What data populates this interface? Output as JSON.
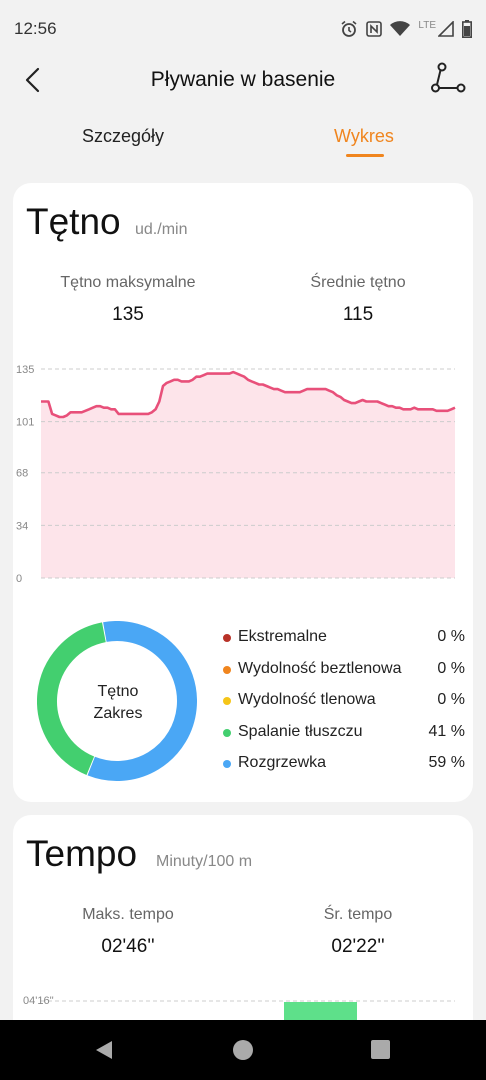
{
  "status_bar": {
    "time": "12:56",
    "network": "LTE"
  },
  "header": {
    "title": "Pływanie w basenie"
  },
  "tabs": [
    {
      "label": "Szczegóły",
      "active": false
    },
    {
      "label": "Wykres",
      "active": true
    }
  ],
  "heart_rate": {
    "title": "Tętno",
    "unit": "ud./min",
    "max_label": "Tętno maksymalne",
    "max_value": "135",
    "avg_label": "Średnie tętno",
    "avg_value": "115",
    "chart_data": {
      "type": "area",
      "yticks": [
        "135",
        "101",
        "68",
        "34",
        "0"
      ],
      "ylim": [
        0,
        135
      ],
      "line_color": "#e8507a",
      "fill_color": "#fde4ea",
      "values": [
        114,
        114,
        114,
        106,
        105,
        104,
        104,
        105,
        107,
        107,
        107,
        107,
        108,
        109,
        110,
        111,
        111,
        110,
        110,
        109,
        109,
        106,
        106,
        106,
        106,
        106,
        106,
        106,
        106,
        106,
        107,
        109,
        114,
        124,
        126,
        127,
        128,
        128,
        127,
        127,
        127,
        128,
        130,
        130,
        131,
        132,
        132,
        132,
        132,
        132,
        132,
        132,
        133,
        132,
        131,
        130,
        128,
        127,
        126,
        125,
        125,
        124,
        123,
        122,
        122,
        121,
        120,
        120,
        120,
        120,
        120,
        121,
        122,
        122,
        122,
        122,
        122,
        122,
        121,
        120,
        118,
        117,
        115,
        114,
        113,
        113,
        114,
        115,
        114,
        114,
        114,
        114,
        113,
        112,
        111,
        111,
        110,
        110,
        109,
        109,
        109,
        110,
        109,
        109,
        109,
        109,
        109,
        108,
        108,
        108,
        108,
        109,
        110
      ]
    },
    "zones": {
      "center_line1": "Tętno",
      "center_line2": "Zakres",
      "items": [
        {
          "label": "Ekstremalne",
          "percent": "0 %",
          "value": 0,
          "color": "#b83228"
        },
        {
          "label": "Wydolność beztlenowa",
          "percent": "0 %",
          "value": 0,
          "color": "#f0851e"
        },
        {
          "label": "Wydolność tlenowa",
          "percent": "0 %",
          "value": 0,
          "color": "#f5c518"
        },
        {
          "label": "Spalanie tłuszczu",
          "percent": "41 %",
          "value": 41,
          "color": "#43cf6f"
        },
        {
          "label": "Rozgrzewka",
          "percent": "59 %",
          "value": 59,
          "color": "#4aa7f5"
        }
      ]
    }
  },
  "pace": {
    "title": "Tempo",
    "unit": "Minuty/100 m",
    "max_label": "Maks. tempo",
    "max_value": "02'46''",
    "avg_label": "Śr. tempo",
    "avg_value": "02'22''",
    "chart_data": {
      "type": "bar",
      "yticks": [
        "04'16''"
      ],
      "bar_color": "#5ee08a"
    }
  }
}
